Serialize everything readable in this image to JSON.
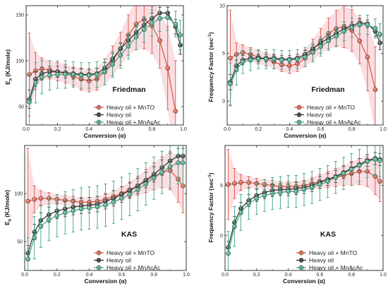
{
  "series_names": [
    "Heavy oil + MnTO",
    "Heavy oil",
    "Heavy oil + MnAcAc"
  ],
  "colors": {
    "mnto": "#d9523c",
    "heavy": "#2b2b2b",
    "mnacac": "#3aa37f",
    "mnto_band": "#f4b6c2"
  },
  "chart_data": [
    {
      "type": "line",
      "panel": "top-left",
      "label": "Friedman",
      "xlabel": "Conversion (α)",
      "ylabel_main": "E",
      "ylabel_sub": "a",
      "ylabel_rest": " (KJ/mole)",
      "xlim": [
        0,
        1.0
      ],
      "ylim": [
        30,
        160
      ],
      "xticks": [
        0.0,
        0.2,
        0.4,
        0.6,
        0.8,
        1.0
      ],
      "xtick_labels": [
        "0.0",
        "0.2",
        "0.4",
        "0.6",
        "0.8",
        "1.0"
      ],
      "yticks": [
        50,
        100,
        150
      ],
      "ytick_labels": [
        "50",
        "100",
        "150"
      ],
      "legend_position": "center-right",
      "series": [
        {
          "name": "Heavy oil + MnTO",
          "x": [
            0.02,
            0.06,
            0.1,
            0.15,
            0.2,
            0.25,
            0.3,
            0.35,
            0.4,
            0.45,
            0.5,
            0.55,
            0.6,
            0.65,
            0.7,
            0.75,
            0.8,
            0.85,
            0.9,
            0.95
          ],
          "y": [
            85,
            89,
            91,
            90,
            88,
            86,
            83,
            80,
            78,
            80,
            88,
            100,
            113,
            128,
            140,
            145,
            138,
            122,
            92,
            45
          ],
          "err": [
            45,
            20,
            12,
            10,
            10,
            10,
            10,
            12,
            12,
            12,
            14,
            16,
            18,
            22,
            28,
            32,
            30,
            30,
            45,
            55
          ]
        },
        {
          "name": "Heavy oil",
          "x": [
            0.02,
            0.06,
            0.1,
            0.15,
            0.2,
            0.25,
            0.3,
            0.35,
            0.4,
            0.45,
            0.5,
            0.55,
            0.6,
            0.65,
            0.7,
            0.75,
            0.8,
            0.85,
            0.9,
            0.95,
            0.98
          ],
          "y": [
            58,
            80,
            86,
            88,
            88,
            87,
            86,
            85,
            85,
            86,
            92,
            102,
            113,
            122,
            131,
            139,
            146,
            152,
            152,
            137,
            117
          ],
          "err": [
            10,
            8,
            7,
            6,
            6,
            6,
            6,
            6,
            6,
            6,
            6,
            6,
            6,
            6,
            6,
            6,
            6,
            6,
            6,
            8,
            10
          ]
        },
        {
          "name": "Heavy oil + MnAcAc",
          "x": [
            0.02,
            0.06,
            0.1,
            0.15,
            0.2,
            0.25,
            0.3,
            0.35,
            0.4,
            0.45,
            0.5,
            0.55,
            0.6,
            0.65,
            0.7,
            0.75,
            0.8,
            0.85,
            0.9,
            0.95,
            0.98
          ],
          "y": [
            55,
            76,
            82,
            84,
            85,
            85,
            85,
            84,
            84,
            85,
            88,
            96,
            106,
            116,
            126,
            134,
            141,
            146,
            147,
            140,
            128
          ],
          "err": [
            30,
            22,
            18,
            16,
            15,
            15,
            14,
            14,
            14,
            14,
            14,
            14,
            14,
            14,
            14,
            14,
            14,
            14,
            14,
            14,
            16
          ]
        }
      ]
    },
    {
      "type": "line",
      "panel": "top-right",
      "label": "Friedman",
      "xlabel": "Conversion (α)",
      "ylabel_main": "Frequency Factor (sec",
      "ylabel_sup": "-1",
      "ylabel_rest": ")",
      "xlim": [
        0,
        1.0
      ],
      "ylim": [
        -2.5,
        10
      ],
      "xticks": [
        0.0,
        0.2,
        0.4,
        0.6,
        0.8,
        1.0
      ],
      "xtick_labels": [
        "0.0",
        "0.2",
        "0.4",
        "0.6",
        "0.8",
        "1.0"
      ],
      "yticks": [
        0,
        5,
        10
      ],
      "ytick_labels": [
        "0",
        "5",
        "10"
      ],
      "legend_position": "center-right",
      "series": [
        {
          "name": "Heavy oil + MnTO",
          "x": [
            0.02,
            0.06,
            0.1,
            0.15,
            0.2,
            0.25,
            0.3,
            0.35,
            0.4,
            0.45,
            0.5,
            0.55,
            0.6,
            0.65,
            0.7,
            0.75,
            0.8,
            0.85,
            0.9,
            0.95
          ],
          "y": [
            4.5,
            4.9,
            5.1,
            4.9,
            4.6,
            4.4,
            4.1,
            3.8,
            3.7,
            3.9,
            4.5,
            5.4,
            6.3,
            7.1,
            7.6,
            7.8,
            7.4,
            6.3,
            4.6,
            1.2
          ],
          "err": [
            5,
            1.2,
            0.8,
            0.7,
            0.7,
            0.7,
            0.7,
            0.7,
            0.8,
            0.8,
            0.9,
            1.1,
            1.3,
            1.6,
            1.9,
            2.2,
            2.2,
            2.4,
            3.5,
            4.5
          ]
        },
        {
          "name": "Heavy oil",
          "x": [
            0.02,
            0.06,
            0.1,
            0.15,
            0.2,
            0.25,
            0.3,
            0.35,
            0.4,
            0.45,
            0.5,
            0.55,
            0.6,
            0.65,
            0.7,
            0.75,
            0.8,
            0.85,
            0.9,
            0.95,
            0.98
          ],
          "y": [
            2.0,
            3.7,
            4.3,
            4.5,
            4.5,
            4.5,
            4.5,
            4.4,
            4.4,
            4.5,
            4.9,
            5.5,
            6.1,
            6.6,
            7.1,
            7.6,
            7.9,
            8.2,
            8.1,
            7.3,
            6.1
          ],
          "err": [
            0.8,
            0.6,
            0.5,
            0.4,
            0.4,
            0.4,
            0.4,
            0.4,
            0.4,
            0.4,
            0.4,
            0.4,
            0.4,
            0.4,
            0.4,
            0.4,
            0.4,
            0.4,
            0.4,
            0.5,
            0.7
          ]
        },
        {
          "name": "Heavy oil + MnAcAc",
          "x": [
            0.02,
            0.06,
            0.1,
            0.15,
            0.2,
            0.25,
            0.3,
            0.35,
            0.4,
            0.45,
            0.5,
            0.55,
            0.6,
            0.65,
            0.7,
            0.75,
            0.8,
            0.85,
            0.9,
            0.95,
            0.98
          ],
          "y": [
            1.8,
            3.3,
            4.1,
            4.3,
            4.4,
            4.4,
            4.4,
            4.3,
            4.3,
            4.4,
            4.6,
            5.1,
            5.7,
            6.3,
            6.8,
            7.3,
            7.7,
            8.0,
            8.0,
            7.6,
            7.0
          ],
          "err": [
            2.2,
            1.6,
            1.2,
            1.1,
            1.0,
            1.0,
            1.0,
            1.0,
            1.0,
            1.0,
            1.0,
            1.0,
            1.0,
            1.0,
            1.0,
            1.0,
            1.0,
            1.0,
            1.0,
            1.0,
            1.1
          ]
        }
      ]
    },
    {
      "type": "line",
      "panel": "bottom-left",
      "label": "KAS",
      "xlabel": "Conversion (α)",
      "ylabel_main": "E",
      "ylabel_sub": "a",
      "ylabel_rest": " (KJ/mole)",
      "xlim": [
        0,
        1.0
      ],
      "ylim": [
        20,
        150
      ],
      "xticks": [
        0.0,
        0.2,
        0.4,
        0.6,
        0.8,
        1.0
      ],
      "xtick_labels": [
        "0.0",
        "0.2",
        "0.4",
        "0.6",
        "0.8",
        "1.0"
      ],
      "yticks": [
        50,
        100
      ],
      "ytick_labels": [
        "50",
        "100"
      ],
      "legend_position": "bottom-right",
      "series": [
        {
          "name": "Heavy oil + MnTO",
          "x": [
            0.02,
            0.06,
            0.1,
            0.15,
            0.2,
            0.25,
            0.3,
            0.35,
            0.4,
            0.45,
            0.5,
            0.55,
            0.6,
            0.65,
            0.7,
            0.75,
            0.8,
            0.85,
            0.9,
            0.95,
            0.98
          ],
          "y": [
            92,
            94,
            95,
            95,
            94,
            93,
            92,
            91,
            91,
            92,
            94,
            97,
            100,
            104,
            108,
            113,
            118,
            122,
            124,
            115,
            108
          ],
          "err": [
            55,
            14,
            8,
            6,
            5,
            5,
            5,
            5,
            5,
            5,
            5,
            6,
            7,
            8,
            10,
            12,
            14,
            16,
            20,
            24,
            28
          ]
        },
        {
          "name": "Heavy oil",
          "x": [
            0.02,
            0.06,
            0.1,
            0.15,
            0.2,
            0.25,
            0.3,
            0.35,
            0.4,
            0.45,
            0.5,
            0.55,
            0.6,
            0.65,
            0.7,
            0.75,
            0.8,
            0.85,
            0.9,
            0.95,
            0.98
          ],
          "y": [
            38,
            60,
            72,
            78,
            82,
            84,
            86,
            87,
            88,
            89,
            92,
            95,
            99,
            103,
            108,
            114,
            120,
            127,
            134,
            139,
            139
          ],
          "err": [
            8,
            8,
            8,
            8,
            8,
            8,
            8,
            8,
            8,
            8,
            8,
            8,
            8,
            8,
            8,
            8,
            8,
            8,
            8,
            8,
            8
          ]
        },
        {
          "name": "Heavy oil + MnAcAc",
          "x": [
            0.02,
            0.06,
            0.1,
            0.15,
            0.2,
            0.25,
            0.3,
            0.35,
            0.4,
            0.45,
            0.5,
            0.55,
            0.6,
            0.65,
            0.7,
            0.75,
            0.8,
            0.85,
            0.9,
            0.95,
            0.98
          ],
          "y": [
            32,
            54,
            66,
            73,
            77,
            80,
            82,
            84,
            85,
            86,
            88,
            91,
            95,
            99,
            104,
            110,
            116,
            122,
            128,
            132,
            132
          ],
          "err": [
            22,
            22,
            22,
            22,
            22,
            22,
            22,
            22,
            22,
            22,
            22,
            22,
            22,
            22,
            22,
            22,
            22,
            22,
            22,
            22,
            22
          ]
        }
      ]
    },
    {
      "type": "line",
      "panel": "bottom-right",
      "label": "KAS",
      "xlabel": "Conversion (α)",
      "ylabel_main": "Frequency Factor (sec",
      "ylabel_sup": "-1",
      "ylabel_rest": ")",
      "xlim": [
        0,
        1.0
      ],
      "ylim": [
        -3.5,
        9
      ],
      "xticks": [
        0.0,
        0.2,
        0.4,
        0.6,
        0.8,
        1.0
      ],
      "xtick_labels": [
        "0.0",
        "0.2",
        "0.4",
        "0.6",
        "0.8",
        "1.0"
      ],
      "yticks": [
        0,
        5
      ],
      "ytick_labels": [
        "0",
        "5"
      ],
      "legend_position": "bottom-right",
      "series": [
        {
          "name": "Heavy oil + MnTO",
          "x": [
            0.02,
            0.06,
            0.1,
            0.15,
            0.2,
            0.25,
            0.3,
            0.35,
            0.4,
            0.45,
            0.5,
            0.55,
            0.6,
            0.65,
            0.7,
            0.75,
            0.8,
            0.85,
            0.9,
            0.95,
            0.98
          ],
          "y": [
            5.1,
            5.2,
            5.3,
            5.3,
            5.2,
            5.1,
            5.0,
            4.9,
            4.9,
            4.9,
            5.0,
            5.2,
            5.4,
            5.6,
            5.8,
            6.0,
            6.2,
            6.4,
            6.4,
            5.9,
            5.4
          ],
          "err": [
            3.5,
            1.5,
            0.8,
            0.6,
            0.5,
            0.5,
            0.5,
            0.5,
            0.5,
            0.5,
            0.5,
            0.6,
            0.7,
            0.8,
            0.9,
            1.0,
            1.2,
            1.3,
            1.5,
            1.8,
            2.0
          ]
        },
        {
          "name": "Heavy oil",
          "x": [
            0.02,
            0.06,
            0.1,
            0.15,
            0.2,
            0.25,
            0.3,
            0.35,
            0.4,
            0.45,
            0.5,
            0.55,
            0.6,
            0.65,
            0.7,
            0.75,
            0.8,
            0.85,
            0.9,
            0.95,
            0.98
          ],
          "y": [
            -1.2,
            1.3,
            2.7,
            3.5,
            4.0,
            4.3,
            4.5,
            4.6,
            4.6,
            4.7,
            4.8,
            5.0,
            5.3,
            5.6,
            5.9,
            6.3,
            6.7,
            7.1,
            7.5,
            7.7,
            7.6
          ],
          "err": [
            0.6,
            0.6,
            0.6,
            0.6,
            0.6,
            0.6,
            0.6,
            0.6,
            0.6,
            0.6,
            0.6,
            0.6,
            0.6,
            0.6,
            0.6,
            0.6,
            0.6,
            0.6,
            0.6,
            0.6,
            0.6
          ]
        },
        {
          "name": "Heavy oil + MnAcAc",
          "x": [
            0.02,
            0.06,
            0.1,
            0.15,
            0.2,
            0.25,
            0.3,
            0.35,
            0.4,
            0.45,
            0.5,
            0.55,
            0.6,
            0.65,
            0.7,
            0.75,
            0.8,
            0.85,
            0.9,
            0.95,
            0.98
          ],
          "y": [
            -1.8,
            0.9,
            2.3,
            3.2,
            3.7,
            4.0,
            4.2,
            4.3,
            4.4,
            4.4,
            4.6,
            4.8,
            5.1,
            5.4,
            5.8,
            6.2,
            6.6,
            7.0,
            7.4,
            7.6,
            7.5
          ],
          "err": [
            2.2,
            2.0,
            1.8,
            1.6,
            1.6,
            1.6,
            1.6,
            1.6,
            1.6,
            1.6,
            1.6,
            1.6,
            1.6,
            1.6,
            1.6,
            1.6,
            1.6,
            1.6,
            1.6,
            1.6,
            1.6
          ]
        }
      ]
    }
  ]
}
